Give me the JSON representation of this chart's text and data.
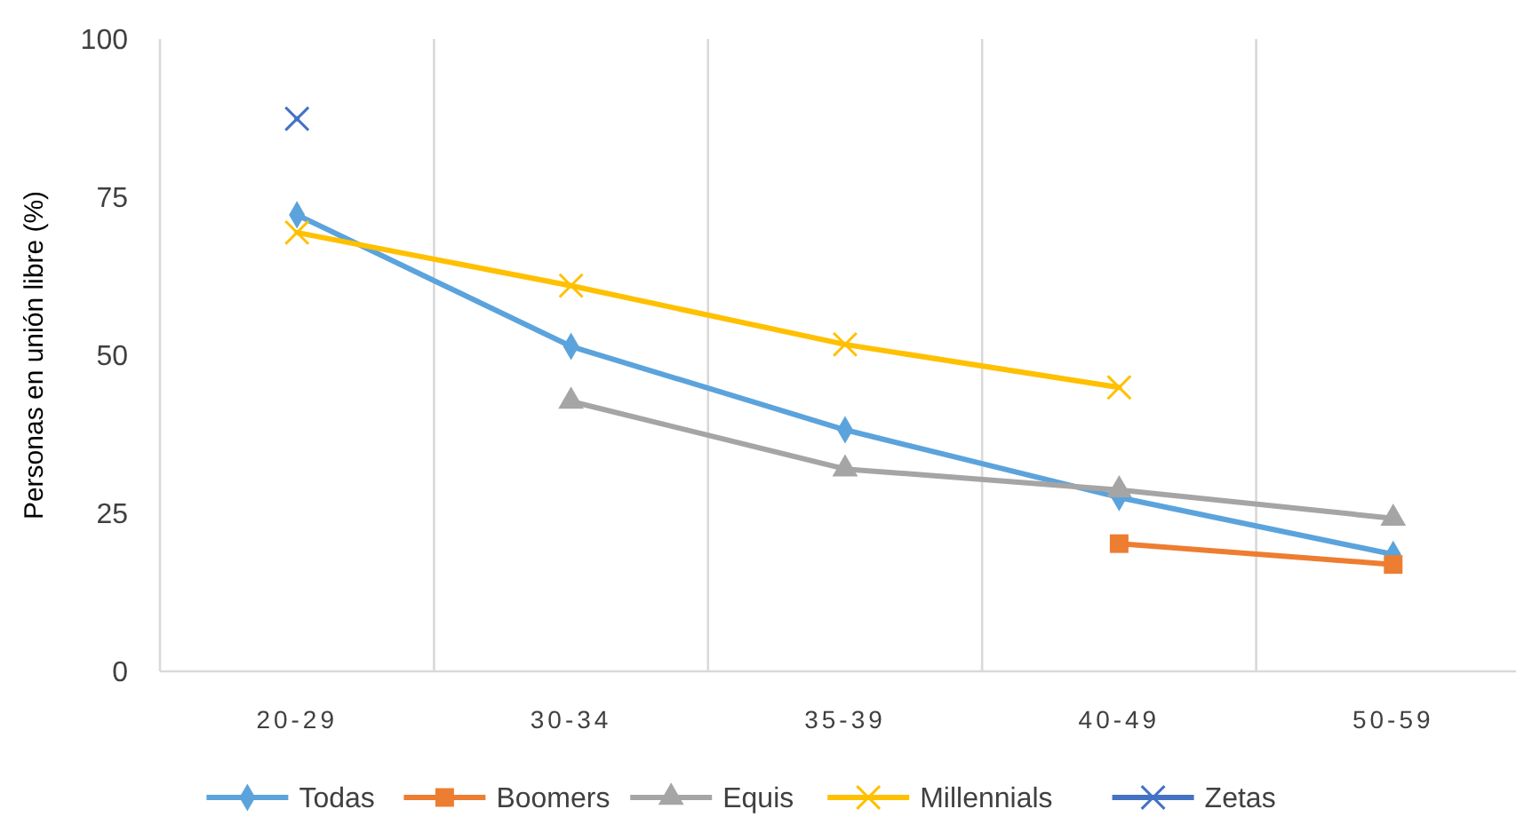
{
  "chart_data": {
    "type": "line",
    "ylabel": "Personas en unión libre (%)",
    "categories": [
      "20-29",
      "30-34",
      "35-39",
      "40-49",
      "50-59"
    ],
    "series": [
      {
        "name": "Todas",
        "color": "#5ba3dc",
        "marker": "diamond",
        "values": [
          72.2,
          51.4,
          38.2,
          27.5,
          18.5
        ]
      },
      {
        "name": "Boomers",
        "color": "#ed7d31",
        "marker": "square",
        "values": [
          null,
          null,
          null,
          20.2,
          16.9
        ]
      },
      {
        "name": "Equis",
        "color": "#a5a5a5",
        "marker": "triangle",
        "values": [
          null,
          42.7,
          32,
          28.7,
          24.2
        ]
      },
      {
        "name": "Millennials",
        "color": "#ffc000",
        "marker": "cross",
        "values": [
          69.4,
          61,
          51.7,
          44.9,
          null
        ]
      },
      {
        "name": "Zetas",
        "color": "#4472c4",
        "marker": "cross",
        "values": [
          87.4,
          null,
          null,
          null,
          null
        ]
      }
    ],
    "ylim": [
      0,
      100
    ],
    "yticks": [
      0,
      25,
      50,
      75,
      100
    ],
    "grid": "x",
    "legend": "bottom",
    "line_style": "solid"
  }
}
